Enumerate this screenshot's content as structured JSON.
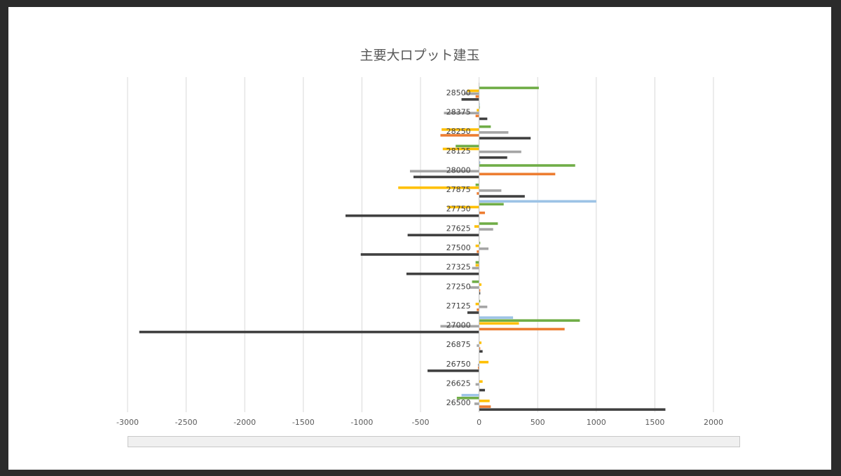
{
  "chart_data": {
    "type": "bar",
    "orientation": "horizontal",
    "title": "主要大ロプット建玉",
    "xlabel": "",
    "ylabel": "",
    "xlim": [
      -3000,
      2000
    ],
    "x_ticks": [
      -3000,
      -2500,
      -2000,
      -1500,
      -1000,
      -500,
      0,
      500,
      1000,
      1500,
      2000
    ],
    "grid": "vertical",
    "legend": "none visible",
    "categories": [
      "28500",
      "28375",
      "28250",
      "28125",
      "28000",
      "27875",
      "27750",
      "27625",
      "27500",
      "27325",
      "27250",
      "27125",
      "27000",
      "26875",
      "26750",
      "26625",
      "26500"
    ],
    "series": [
      {
        "color": "#9dc3e6",
        "values": [
          0,
          5,
          0,
          0,
          10,
          0,
          1000,
          0,
          0,
          0,
          0,
          0,
          290,
          0,
          0,
          0,
          -150
        ]
      },
      {
        "color": "#70ad47",
        "values": [
          510,
          5,
          100,
          -200,
          820,
          -30,
          210,
          160,
          10,
          -30,
          -60,
          10,
          860,
          0,
          0,
          0,
          -190
        ]
      },
      {
        "color": "#ffc000",
        "values": [
          -100,
          -20,
          -320,
          -310,
          0,
          -690,
          -270,
          -40,
          -30,
          -30,
          20,
          -30,
          340,
          20,
          80,
          30,
          90
        ]
      },
      {
        "color": "#a5a5a5",
        "values": [
          -130,
          -300,
          250,
          360,
          -590,
          190,
          0,
          120,
          80,
          -60,
          -80,
          70,
          -330,
          -20,
          -10,
          -30,
          -40
        ]
      },
      {
        "color": "#ed7d31",
        "values": [
          -30,
          -30,
          -330,
          0,
          650,
          -20,
          50,
          0,
          -20,
          0,
          10,
          -20,
          730,
          10,
          -10,
          0,
          100
        ]
      },
      {
        "color": "#404040",
        "values": [
          -150,
          70,
          440,
          240,
          -560,
          390,
          -1140,
          -610,
          -1010,
          -620,
          10,
          -100,
          -2900,
          30,
          -440,
          50,
          1590
        ]
      }
    ]
  }
}
